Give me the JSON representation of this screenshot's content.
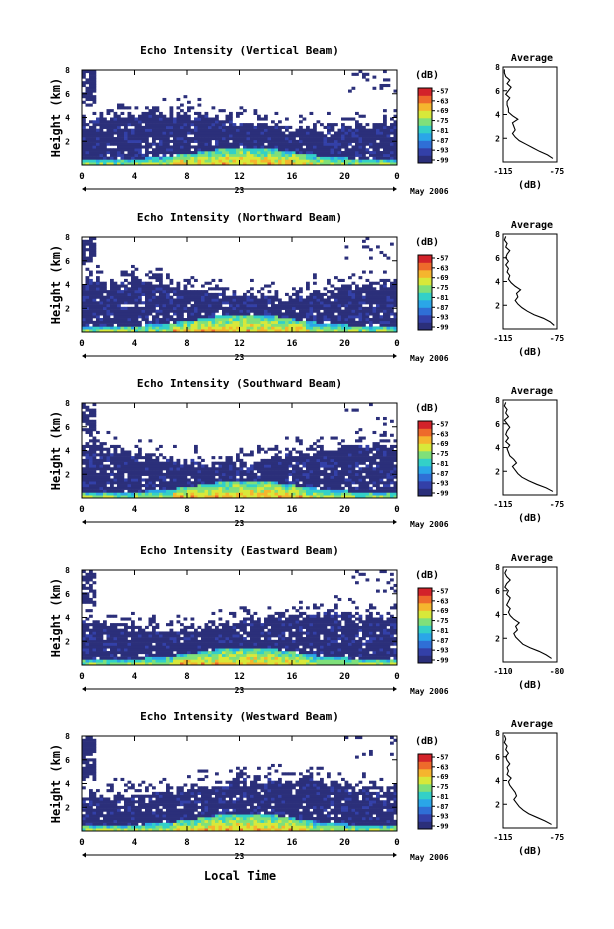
{
  "figure": {
    "time_axis_label": "Local Time",
    "date_label": "May 2006",
    "day_label": "23",
    "colorbar_unit": "(dB)",
    "colorbar_ticks": [
      "-57",
      "-63",
      "-69",
      "-75",
      "-81",
      "-87",
      "-93",
      "-99"
    ],
    "colormap": [
      "#2b2f7a",
      "#3340a8",
      "#2f6fd6",
      "#2aa6e8",
      "#33d0c8",
      "#7fe07a",
      "#d8e83a",
      "#f5b52e",
      "#ee6a2b",
      "#d3232a"
    ]
  },
  "chart_data": [
    {
      "type": "heatmap",
      "title": "Echo Intensity (Vertical Beam)",
      "ylabel": "Height (km)",
      "x_ticks": [
        "0",
        "4",
        "8",
        "12",
        "16",
        "20",
        "0"
      ],
      "y_ticks": [
        "8",
        "6",
        "4",
        "2"
      ],
      "xlim": [
        0,
        24
      ],
      "ylim": [
        0,
        8
      ],
      "profile": {
        "title": "Average",
        "xlabel": "(dB)",
        "x_ticks": [
          "-115",
          "-75"
        ],
        "y_ticks": [
          "8",
          "6",
          "4",
          "2"
        ],
        "xlim": [
          -115,
          -75
        ],
        "ylim": [
          0,
          8
        ],
        "height": [
          0.3,
          0.6,
          0.9,
          1.2,
          1.5,
          1.8,
          2.1,
          2.4,
          2.7,
          3.0,
          3.3,
          3.6,
          3.9,
          4.2,
          4.5,
          4.8,
          5.1,
          5.4,
          5.7,
          6.0,
          6.3,
          6.6,
          6.9,
          7.2,
          7.5,
          7.8
        ],
        "values": [
          -78,
          -82,
          -88,
          -93,
          -98,
          -103,
          -106,
          -108,
          -106,
          -107,
          -108,
          -104,
          -108,
          -111,
          -111,
          -112,
          -112,
          -110,
          -113,
          -111,
          -109,
          -112,
          -110,
          -113,
          -114,
          -114
        ]
      }
    },
    {
      "type": "heatmap",
      "title": "Echo Intensity (Northward Beam)",
      "ylabel": "Height (km)",
      "x_ticks": [
        "0",
        "4",
        "8",
        "12",
        "16",
        "20",
        "0"
      ],
      "y_ticks": [
        "8",
        "6",
        "4",
        "2"
      ],
      "xlim": [
        0,
        24
      ],
      "ylim": [
        0,
        8
      ],
      "profile": {
        "title": "Average",
        "xlabel": "(dB)",
        "x_ticks": [
          "-115",
          "-75"
        ],
        "y_ticks": [
          "8",
          "6",
          "4",
          "2"
        ],
        "xlim": [
          -115,
          -75
        ],
        "ylim": [
          0,
          8
        ],
        "height": [
          0.3,
          0.6,
          0.9,
          1.2,
          1.5,
          1.8,
          2.1,
          2.4,
          2.7,
          3.0,
          3.3,
          3.6,
          3.9,
          4.2,
          4.5,
          4.8,
          5.1,
          5.4,
          5.7,
          6.0,
          6.3,
          6.6,
          6.9,
          7.2,
          7.5,
          7.8
        ],
        "values": [
          -77,
          -80,
          -85,
          -92,
          -97,
          -101,
          -104,
          -106,
          -104,
          -105,
          -102,
          -106,
          -109,
          -111,
          -110,
          -112,
          -111,
          -113,
          -111,
          -113,
          -112,
          -110,
          -113,
          -112,
          -114,
          -113
        ]
      }
    },
    {
      "type": "heatmap",
      "title": "Echo Intensity (Southward Beam)",
      "ylabel": "Height (km)",
      "x_ticks": [
        "0",
        "4",
        "8",
        "12",
        "16",
        "20",
        "0"
      ],
      "y_ticks": [
        "8",
        "6",
        "4",
        "2"
      ],
      "xlim": [
        0,
        24
      ],
      "ylim": [
        0,
        8
      ],
      "profile": {
        "title": "Average",
        "xlabel": "(dB)",
        "x_ticks": [
          "-115",
          "-75"
        ],
        "y_ticks": [
          "8",
          "6",
          "4",
          "2"
        ],
        "xlim": [
          -115,
          -75
        ],
        "ylim": [
          0,
          8
        ],
        "height": [
          0.3,
          0.6,
          0.9,
          1.2,
          1.5,
          1.8,
          2.1,
          2.4,
          2.7,
          3.0,
          3.3,
          3.6,
          3.9,
          4.2,
          4.5,
          4.8,
          5.1,
          5.4,
          5.7,
          6.0,
          6.3,
          6.6,
          6.9,
          7.2,
          7.5,
          7.8
        ],
        "values": [
          -78,
          -83,
          -90,
          -96,
          -101,
          -104,
          -106,
          -108,
          -105,
          -107,
          -110,
          -111,
          -112,
          -110,
          -113,
          -111,
          -113,
          -112,
          -110,
          -112,
          -114,
          -111,
          -113,
          -112,
          -114,
          -113
        ]
      }
    },
    {
      "type": "heatmap",
      "title": "Echo Intensity (Eastward Beam)",
      "ylabel": "Height (km)",
      "x_ticks": [
        "0",
        "4",
        "8",
        "12",
        "16",
        "20",
        "0"
      ],
      "y_ticks": [
        "8",
        "6",
        "4",
        "2"
      ],
      "xlim": [
        0,
        24
      ],
      "ylim": [
        0,
        8
      ],
      "profile": {
        "title": "Average",
        "xlabel": "(dB)",
        "x_ticks": [
          "-110",
          "-80"
        ],
        "y_ticks": [
          "8",
          "6",
          "4",
          "2"
        ],
        "xlim": [
          -110,
          -80
        ],
        "ylim": [
          0,
          8
        ],
        "height": [
          0.3,
          0.6,
          0.9,
          1.2,
          1.5,
          1.8,
          2.1,
          2.4,
          2.7,
          3.0,
          3.3,
          3.6,
          3.9,
          4.2,
          4.5,
          4.8,
          5.1,
          5.4,
          5.7,
          6.0,
          6.3,
          6.6,
          6.9,
          7.2,
          7.5,
          7.8
        ],
        "values": [
          -83,
          -86,
          -90,
          -95,
          -99,
          -101,
          -103,
          -104,
          -102,
          -103,
          -101,
          -104,
          -106,
          -107,
          -106,
          -108,
          -107,
          -106,
          -108,
          -107,
          -109,
          -108,
          -106,
          -108,
          -109,
          -108
        ]
      }
    },
    {
      "type": "heatmap",
      "title": "Echo Intensity (Westward Beam)",
      "ylabel": "Height (km)",
      "x_ticks": [
        "0",
        "4",
        "8",
        "12",
        "16",
        "20",
        "0"
      ],
      "y_ticks": [
        "8",
        "6",
        "4",
        "2"
      ],
      "xlim": [
        0,
        24
      ],
      "ylim": [
        0,
        8
      ],
      "profile": {
        "title": "Average",
        "xlabel": "(dB)",
        "x_ticks": [
          "-115",
          "-75"
        ],
        "y_ticks": [
          "8",
          "6",
          "4",
          "2"
        ],
        "xlim": [
          -115,
          -75
        ],
        "ylim": [
          0,
          8
        ],
        "height": [
          0.3,
          0.6,
          0.9,
          1.2,
          1.5,
          1.8,
          2.1,
          2.4,
          2.7,
          3.0,
          3.3,
          3.6,
          3.9,
          4.2,
          4.5,
          4.8,
          5.1,
          5.4,
          5.7,
          6.0,
          6.3,
          6.6,
          6.9,
          7.2,
          7.5,
          7.8
        ],
        "values": [
          -79,
          -84,
          -90,
          -96,
          -100,
          -103,
          -105,
          -107,
          -105,
          -106,
          -108,
          -110,
          -111,
          -109,
          -112,
          -111,
          -112,
          -110,
          -112,
          -113,
          -111,
          -113,
          -112,
          -114,
          -113,
          -114
        ]
      }
    }
  ]
}
